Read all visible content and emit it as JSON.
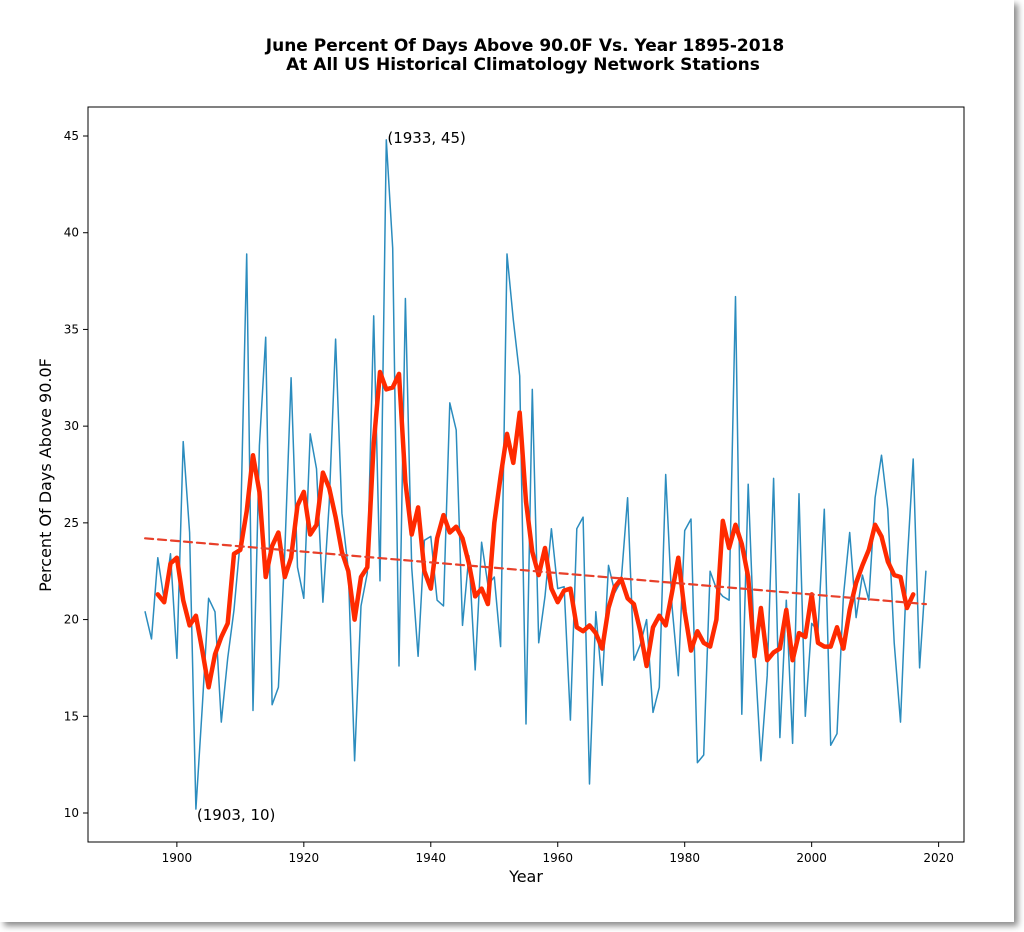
{
  "chart_data": {
    "type": "line",
    "title": "June Percent Of Days Above 90.0F Vs. Year 1895-2018",
    "subtitle": "At All US Historical Climatology Network Stations",
    "xlabel": "Year",
    "ylabel": "Percent Of Days Above 90.0F",
    "xlim": [
      1886,
      2024
    ],
    "ylim": [
      8.5,
      46.5
    ],
    "xticks": [
      1900,
      1920,
      1940,
      1960,
      1980,
      2000,
      2020
    ],
    "yticks": [
      10,
      15,
      20,
      25,
      30,
      35,
      40,
      45
    ],
    "grid": false,
    "colors": {
      "annual": "#2b8cbe",
      "smooth": "#ff2a00",
      "trend": "#e8402a"
    },
    "series": [
      {
        "style": "thin-blue",
        "x": [
          1895,
          1896,
          1897,
          1898,
          1899,
          1900,
          1901,
          1902,
          1903,
          1904,
          1905,
          1906,
          1907,
          1908,
          1909,
          1910,
          1911,
          1912,
          1913,
          1914,
          1915,
          1916,
          1917,
          1918,
          1919,
          1920,
          1921,
          1922,
          1923,
          1924,
          1925,
          1926,
          1927,
          1928,
          1929,
          1930,
          1931,
          1932,
          1933,
          1934,
          1935,
          1936,
          1937,
          1938,
          1939,
          1940,
          1941,
          1942,
          1943,
          1944,
          1945,
          1946,
          1947,
          1948,
          1949,
          1950,
          1951,
          1952,
          1953,
          1954,
          1955,
          1956,
          1957,
          1958,
          1959,
          1960,
          1961,
          1962,
          1963,
          1964,
          1965,
          1966,
          1967,
          1968,
          1969,
          1970,
          1971,
          1972,
          1973,
          1974,
          1975,
          1976,
          1977,
          1978,
          1979,
          1980,
          1981,
          1982,
          1983,
          1984,
          1985,
          1986,
          1987,
          1988,
          1989,
          1990,
          1991,
          1992,
          1993,
          1994,
          1995,
          1996,
          1997,
          1998,
          1999,
          2000,
          2001,
          2002,
          2003,
          2004,
          2005,
          2006,
          2007,
          2008,
          2009,
          2010,
          2011,
          2012,
          2013,
          2014,
          2015,
          2016,
          2017,
          2018
        ],
        "values": [
          20.4,
          19.0,
          23.2,
          21.0,
          23.4,
          18.0,
          29.2,
          24.5,
          10.2,
          15.5,
          21.1,
          20.4,
          14.7,
          18.0,
          20.5,
          24.1,
          38.9,
          15.3,
          29.0,
          34.6,
          15.6,
          16.5,
          23.5,
          32.5,
          22.7,
          21.1,
          29.6,
          27.8,
          20.9,
          26.0,
          34.5,
          25.5,
          22.6,
          12.7,
          20.7,
          22.4,
          35.7,
          22.0,
          44.8,
          39.2,
          17.6,
          36.6,
          22.7,
          18.1,
          24.1,
          24.3,
          21.0,
          20.7,
          31.2,
          29.8,
          19.7,
          23.3,
          17.4,
          24.0,
          21.8,
          22.2,
          18.6,
          38.9,
          35.5,
          32.6,
          14.6,
          31.9,
          18.8,
          21.2,
          24.7,
          21.6,
          21.7,
          14.8,
          24.7,
          25.3,
          11.5,
          20.4,
          16.6,
          22.8,
          21.4,
          22.0,
          26.3,
          17.9,
          18.7,
          20.0,
          15.2,
          16.5,
          27.5,
          20.7,
          17.1,
          24.6,
          25.2,
          12.6,
          13.0,
          22.5,
          21.6,
          21.2,
          21.0,
          36.7,
          15.1,
          27.0,
          18.5,
          12.7,
          17.1,
          27.3,
          13.9,
          21.0,
          13.6,
          26.5,
          15.0,
          19.8,
          19.4,
          25.7,
          13.5,
          14.1,
          21.2,
          24.5,
          20.1,
          22.3,
          21.0,
          26.3,
          28.5,
          25.7,
          18.8,
          14.7,
          22.7,
          28.3,
          17.5,
          22.5
        ]
      },
      {
        "style": "thick-red-smoothed",
        "x": [
          1897,
          1898,
          1899,
          1900,
          1901,
          1902,
          1903,
          1904,
          1905,
          1906,
          1907,
          1908,
          1909,
          1910,
          1911,
          1912,
          1913,
          1914,
          1915,
          1916,
          1917,
          1918,
          1919,
          1920,
          1921,
          1922,
          1923,
          1924,
          1925,
          1926,
          1927,
          1928,
          1929,
          1930,
          1931,
          1932,
          1933,
          1934,
          1935,
          1936,
          1937,
          1938,
          1939,
          1940,
          1941,
          1942,
          1943,
          1944,
          1945,
          1946,
          1947,
          1948,
          1949,
          1950,
          1951,
          1952,
          1953,
          1954,
          1955,
          1956,
          1957,
          1958,
          1959,
          1960,
          1961,
          1962,
          1963,
          1964,
          1965,
          1966,
          1967,
          1968,
          1969,
          1970,
          1971,
          1972,
          1973,
          1974,
          1975,
          1976,
          1977,
          1978,
          1979,
          1980,
          1981,
          1982,
          1983,
          1984,
          1985,
          1986,
          1987,
          1988,
          1989,
          1990,
          1991,
          1992,
          1993,
          1994,
          1995,
          1996,
          1997,
          1998,
          1999,
          2000,
          2001,
          2002,
          2003,
          2004,
          2005,
          2006,
          2007,
          2008,
          2009,
          2010,
          2011,
          2012,
          2013,
          2014,
          2015,
          2016
        ],
        "values": [
          21.3,
          20.9,
          22.9,
          23.2,
          21.0,
          19.7,
          20.2,
          18.4,
          16.5,
          18.2,
          19.1,
          19.8,
          23.4,
          23.6,
          25.6,
          28.5,
          26.6,
          22.2,
          23.8,
          24.5,
          22.2,
          23.2,
          25.9,
          26.6,
          24.4,
          24.9,
          27.6,
          26.8,
          25.3,
          23.5,
          22.5,
          20.0,
          22.2,
          22.7,
          29.1,
          32.8,
          31.9,
          32.0,
          32.7,
          27.1,
          24.4,
          25.8,
          22.5,
          21.6,
          24.2,
          25.4,
          24.5,
          24.8,
          24.2,
          22.9,
          21.2,
          21.6,
          20.8,
          25.0,
          27.4,
          29.6,
          28.1,
          30.7,
          26.1,
          23.5,
          22.3,
          23.7,
          21.6,
          20.9,
          21.5,
          21.6,
          19.6,
          19.4,
          19.7,
          19.3,
          18.5,
          20.6,
          21.7,
          22.1,
          21.1,
          20.8,
          19.4,
          17.6,
          19.6,
          20.2,
          19.7,
          21.4,
          23.2,
          20.4,
          18.4,
          19.4,
          18.8,
          18.6,
          20.0,
          25.1,
          23.7,
          24.9,
          23.9,
          22.2,
          18.1,
          20.6,
          17.9,
          18.3,
          18.5,
          20.5,
          17.9,
          19.3,
          19.1,
          21.3,
          18.8,
          18.6,
          18.6,
          19.6,
          18.5,
          20.5,
          21.9,
          22.8,
          23.6,
          24.9,
          24.3,
          23.0,
          22.3,
          22.2,
          20.6,
          21.3
        ]
      },
      {
        "style": "dashed-trend",
        "x": [
          1895,
          2018
        ],
        "values": [
          24.2,
          20.8
        ]
      }
    ],
    "annotations": [
      {
        "text": "(1933, 45)",
        "x": 1933,
        "y": 45
      },
      {
        "text": "(1903, 10)",
        "x": 1903,
        "y": 10
      }
    ]
  }
}
